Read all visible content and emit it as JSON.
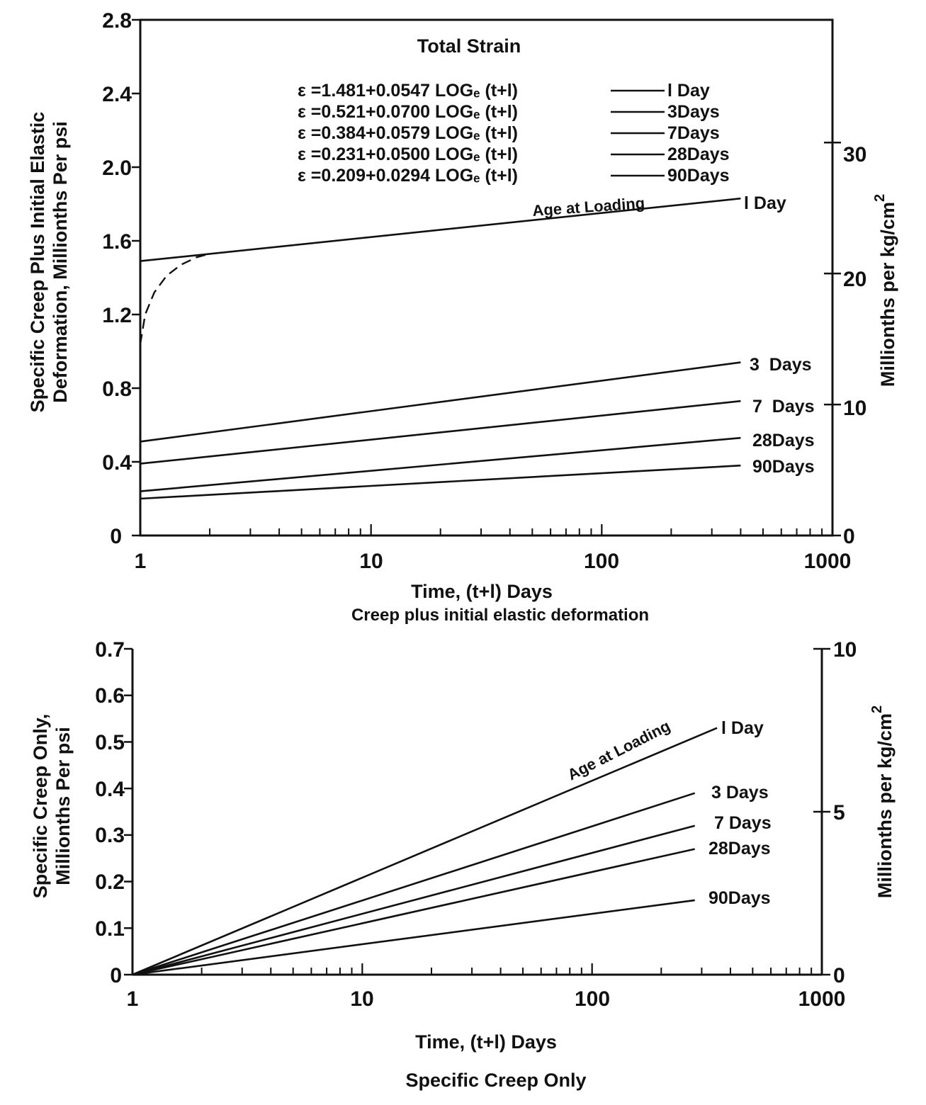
{
  "chart_data": [
    {
      "type": "line",
      "title": "Total Strain",
      "caption": "Creep plus initial elastic deformation",
      "xlabel": "Time, (t+l) Days",
      "ylabel_lines": [
        "Specific Creep Plus Initial Elastic",
        "Deformation, Millionths Per psi"
      ],
      "y2label": "Millionths per kg/cm",
      "y2label_sup": "2",
      "xscale": "log",
      "xlim": [
        1,
        1000
      ],
      "ylim": [
        0,
        2.8
      ],
      "y2lim": [
        0,
        39.37
      ],
      "x_ticks": [
        "1",
        "10",
        "100",
        "1000"
      ],
      "y_ticks": [
        "0",
        "0.4",
        "0.8",
        "1.2",
        "1.6",
        "2.0",
        "2.4",
        "2.8"
      ],
      "y2_ticks": [
        "0",
        "10",
        "20",
        "30"
      ],
      "grid": false,
      "legend_equations": [
        {
          "eq": "ε =1.481+0.0547 LOGₑ (t+l)",
          "label": "l Day"
        },
        {
          "eq": "ε =0.521+0.0700 LOGₑ (t+l)",
          "label": "3Days"
        },
        {
          "eq": "ε =0.384+0.0579 LOGₑ (t+l)",
          "label": "7Days"
        },
        {
          "eq": "ε =0.231+0.0500 LOGₑ (t+l)",
          "label": "28Days"
        },
        {
          "eq": "ε =0.209+0.0294 LOGₑ (t+l)",
          "label": "90Days"
        }
      ],
      "annotation": "Age at Loading",
      "series": [
        {
          "name": "l Day",
          "x": [
            1,
            400
          ],
          "y": [
            1.49,
            1.83
          ]
        },
        {
          "name": "3 Days",
          "x": [
            1,
            400
          ],
          "y": [
            0.51,
            0.94
          ]
        },
        {
          "name": "7 Days",
          "x": [
            1,
            400
          ],
          "y": [
            0.39,
            0.73
          ]
        },
        {
          "name": "28 Days",
          "x": [
            1,
            400
          ],
          "y": [
            0.24,
            0.53
          ]
        },
        {
          "name": "90 Days",
          "x": [
            1,
            400
          ],
          "y": [
            0.2,
            0.38
          ]
        }
      ],
      "dashed_curve": {
        "x": [
          1.0,
          1.05,
          1.15,
          1.3,
          1.5,
          1.75,
          2.0
        ],
        "y": [
          1.04,
          1.2,
          1.32,
          1.41,
          1.47,
          1.51,
          1.53
        ]
      }
    },
    {
      "type": "line",
      "caption": "Specific Creep Only",
      "xlabel": "Time, (t+l) Days",
      "ylabel_lines": [
        "Specific Creep Only,",
        "Millionths Per psi"
      ],
      "y2label": "Millionths per kg/cm",
      "y2label_sup": "2",
      "xscale": "log",
      "xlim": [
        1,
        1000
      ],
      "ylim": [
        0,
        0.7
      ],
      "y2lim": [
        0,
        10
      ],
      "x_ticks": [
        "1",
        "10",
        "100",
        "1000"
      ],
      "y_ticks": [
        "0",
        "0.1",
        "0.2",
        "0.3",
        "0.4",
        "0.5",
        "0.6",
        "0.7"
      ],
      "y2_ticks": [
        "0",
        "5",
        "10"
      ],
      "grid": false,
      "annotation": "Age at Loading",
      "series": [
        {
          "name": "l Day",
          "x": [
            1,
            350
          ],
          "y": [
            0,
            0.53
          ]
        },
        {
          "name": "3 Days",
          "x": [
            1,
            280
          ],
          "y": [
            0,
            0.39
          ]
        },
        {
          "name": "7 Days",
          "x": [
            1,
            280
          ],
          "y": [
            0,
            0.32
          ]
        },
        {
          "name": "28 Days",
          "x": [
            1,
            280
          ],
          "y": [
            0,
            0.27
          ]
        },
        {
          "name": "90 Days",
          "x": [
            1,
            280
          ],
          "y": [
            0,
            0.16
          ]
        }
      ]
    }
  ],
  "series_labels_top": [
    "l Day",
    "3  Days",
    "7  Days",
    "28Days",
    "90Days"
  ],
  "series_labels_bottom": [
    "l Day",
    "3 Days",
    "7 Days",
    "28Days",
    "90Days"
  ]
}
